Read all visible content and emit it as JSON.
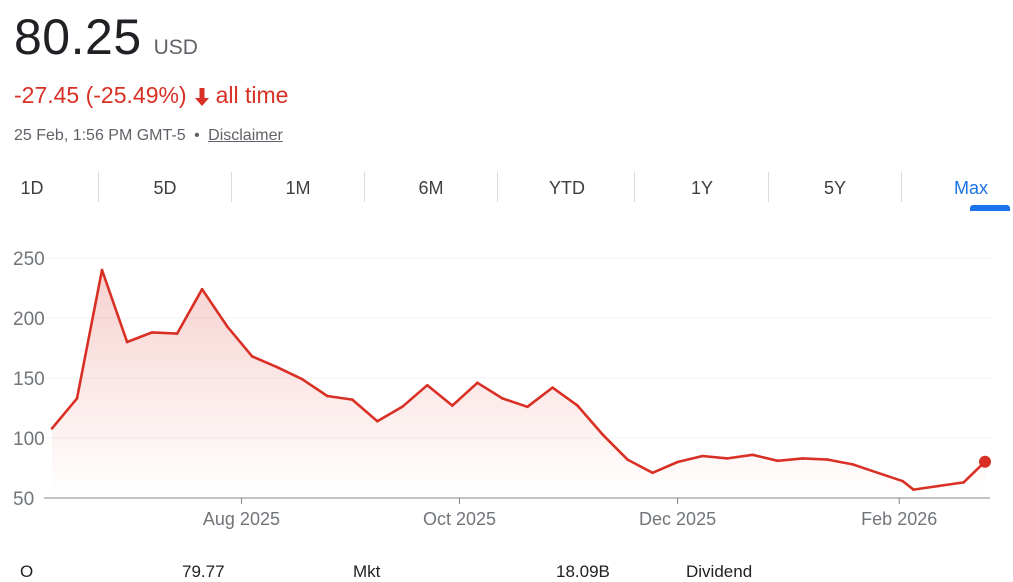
{
  "quote": {
    "price": "80.25",
    "currency": "USD",
    "change": "-27.45 (-25.49%)",
    "arrow_icon": "arrow-down-icon",
    "period": "all time",
    "timestamp": "25 Feb, 1:56 PM GMT-5",
    "separator": "•",
    "disclaimer": "Disclaimer"
  },
  "colors": {
    "down": "#d93025",
    "accent": "#1a73e8"
  },
  "tabs": [
    {
      "label": "1D",
      "active": false
    },
    {
      "label": "5D",
      "active": false
    },
    {
      "label": "1M",
      "active": false
    },
    {
      "label": "6M",
      "active": false
    },
    {
      "label": "YTD",
      "active": false
    },
    {
      "label": "1Y",
      "active": false
    },
    {
      "label": "5Y",
      "active": false
    },
    {
      "label": "Max",
      "active": true
    }
  ],
  "footer": {
    "item0": "O",
    "item1": "79.77",
    "item2": "Mkt",
    "item3": "18.09B",
    "item4": "Dividend"
  },
  "chart_data": {
    "type": "area",
    "title": "",
    "xlabel": "",
    "ylabel": "",
    "x_tick_labels": [
      "Aug 2025",
      "Oct 2025",
      "Dec 2025",
      "Feb 2026"
    ],
    "x_tick_dates": [
      "2025-08-01",
      "2025-10-01",
      "2025-12-01",
      "2026-02-01"
    ],
    "y_ticks": [
      50,
      100,
      150,
      200,
      250
    ],
    "ylim": [
      50,
      260
    ],
    "grid": "horizontal",
    "series": [
      {
        "color": "#d93025",
        "points": [
          {
            "date": "2025-06-09",
            "value": 108
          },
          {
            "date": "2025-06-16",
            "value": 133
          },
          {
            "date": "2025-06-23",
            "value": 240
          },
          {
            "date": "2025-06-30",
            "value": 180
          },
          {
            "date": "2025-07-07",
            "value": 188
          },
          {
            "date": "2025-07-14",
            "value": 187
          },
          {
            "date": "2025-07-21",
            "value": 224
          },
          {
            "date": "2025-07-28",
            "value": 193
          },
          {
            "date": "2025-08-04",
            "value": 168
          },
          {
            "date": "2025-08-11",
            "value": 159
          },
          {
            "date": "2025-08-18",
            "value": 149
          },
          {
            "date": "2025-08-25",
            "value": 135
          },
          {
            "date": "2025-09-01",
            "value": 132
          },
          {
            "date": "2025-09-08",
            "value": 114
          },
          {
            "date": "2025-09-15",
            "value": 126
          },
          {
            "date": "2025-09-22",
            "value": 144
          },
          {
            "date": "2025-09-29",
            "value": 127
          },
          {
            "date": "2025-10-06",
            "value": 146
          },
          {
            "date": "2025-10-13",
            "value": 133
          },
          {
            "date": "2025-10-20",
            "value": 126
          },
          {
            "date": "2025-10-27",
            "value": 142
          },
          {
            "date": "2025-11-03",
            "value": 127
          },
          {
            "date": "2025-11-10",
            "value": 103
          },
          {
            "date": "2025-11-17",
            "value": 82
          },
          {
            "date": "2025-11-24",
            "value": 71
          },
          {
            "date": "2025-12-01",
            "value": 80
          },
          {
            "date": "2025-12-08",
            "value": 85
          },
          {
            "date": "2025-12-15",
            "value": 83
          },
          {
            "date": "2025-12-22",
            "value": 86
          },
          {
            "date": "2025-12-29",
            "value": 81
          },
          {
            "date": "2026-01-05",
            "value": 83
          },
          {
            "date": "2026-01-12",
            "value": 82
          },
          {
            "date": "2026-01-19",
            "value": 78
          },
          {
            "date": "2026-01-26",
            "value": 71
          },
          {
            "date": "2026-02-02",
            "value": 64
          },
          {
            "date": "2026-02-05",
            "value": 57
          },
          {
            "date": "2026-02-12",
            "value": 60
          },
          {
            "date": "2026-02-19",
            "value": 63
          },
          {
            "date": "2026-02-25",
            "value": 80.25
          }
        ]
      }
    ]
  }
}
